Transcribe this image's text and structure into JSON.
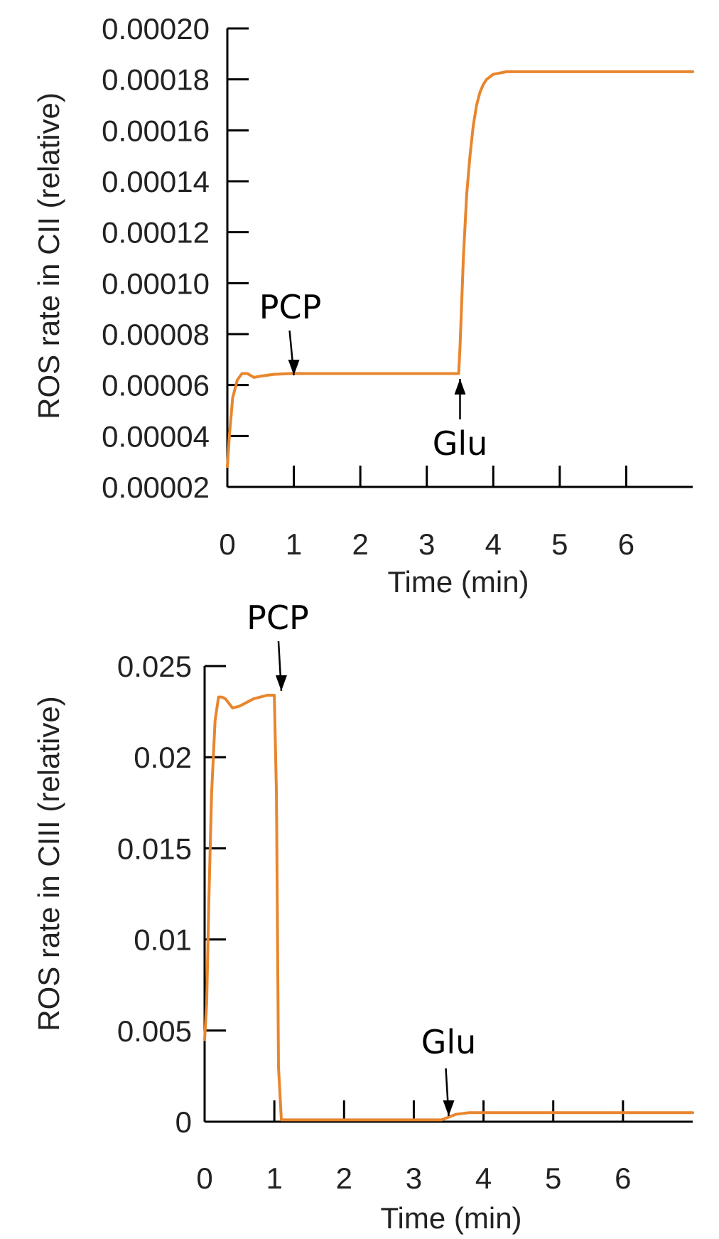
{
  "chart_data": [
    {
      "type": "line",
      "xlabel": "Time (min)",
      "ylabel": "ROS rate in CII (relative)",
      "xlim": [
        0,
        7
      ],
      "ylim": [
        2e-05,
        0.0002
      ],
      "x_ticks": [
        "0",
        "1",
        "2",
        "3",
        "4",
        "5",
        "6"
      ],
      "y_ticks": [
        "0.00002",
        "0.00004",
        "0.00006",
        "0.00008",
        "0.00010",
        "0.00012",
        "0.00014",
        "0.00016",
        "0.00018",
        "0.00020"
      ],
      "series_color": "#e8862e",
      "series": [
        {
          "x": [
            0,
            0.03,
            0.08,
            0.15,
            0.22,
            0.3,
            0.4,
            0.5,
            0.7,
            0.95,
            1.5,
            2.0,
            2.5,
            3.0,
            3.48,
            3.5,
            3.55,
            3.6,
            3.65,
            3.7,
            3.75,
            3.8,
            3.85,
            3.9,
            3.95,
            4.0,
            4.1,
            4.2,
            4.3,
            4.5,
            5.0,
            5.5,
            6.0,
            6.5,
            7.0
          ],
          "y": [
            2.8e-05,
            4e-05,
            5.5e-05,
            6.2e-05,
            6.45e-05,
            6.45e-05,
            6.3e-05,
            6.35e-05,
            6.42e-05,
            6.45e-05,
            6.45e-05,
            6.45e-05,
            6.45e-05,
            6.45e-05,
            6.45e-05,
            7.5e-05,
            0.00011,
            0.000135,
            0.00015,
            0.000162,
            0.00017,
            0.000175,
            0.000178,
            0.00018,
            0.000181,
            0.000182,
            0.0001825,
            0.000183,
            0.000183,
            0.000183,
            0.000183,
            0.000183,
            0.000183,
            0.000183,
            0.000183
          ]
        }
      ],
      "annotations": [
        {
          "text": "PCP",
          "x": 1.0,
          "y": 6.45e-05,
          "position": "above"
        },
        {
          "text": "Glu",
          "x": 3.5,
          "y": 6.45e-05,
          "position": "below"
        }
      ]
    },
    {
      "type": "line",
      "xlabel": "Time (min)",
      "ylabel": "ROS rate in CIII (relative)",
      "xlim": [
        0,
        7
      ],
      "ylim": [
        0,
        0.025
      ],
      "x_ticks": [
        "0",
        "1",
        "2",
        "3",
        "4",
        "5",
        "6"
      ],
      "y_ticks": [
        "0",
        "0.005",
        "0.01",
        "0.015",
        "0.02",
        "0.025"
      ],
      "series_color": "#e8862e",
      "series": [
        {
          "x": [
            0,
            0.03,
            0.06,
            0.1,
            0.15,
            0.2,
            0.25,
            0.3,
            0.4,
            0.5,
            0.6,
            0.7,
            0.8,
            0.9,
            1.0,
            1.03,
            1.06,
            1.1,
            1.5,
            2.0,
            2.5,
            3.0,
            3.3,
            3.4,
            3.6,
            3.8,
            4.0,
            4.5,
            5.0,
            5.5,
            6.0,
            6.5,
            7.0
          ],
          "y": [
            0.0045,
            0.0065,
            0.012,
            0.018,
            0.022,
            0.0233,
            0.0233,
            0.0232,
            0.0227,
            0.0228,
            0.023,
            0.0232,
            0.0233,
            0.0234,
            0.0234,
            0.018,
            0.003,
            0.0001,
            0.0001,
            0.0001,
            0.0001,
            0.0001,
            0.0001,
            0.0001,
            0.0004,
            0.0005,
            0.0005,
            0.0005,
            0.0005,
            0.0005,
            0.0005,
            0.0005,
            0.0005
          ]
        }
      ],
      "annotations": [
        {
          "text": "PCP",
          "x": 1.1,
          "y": 0.0234,
          "position": "above"
        },
        {
          "text": "Glu",
          "x": 3.5,
          "y": 0.0001,
          "position": "above"
        }
      ]
    }
  ]
}
